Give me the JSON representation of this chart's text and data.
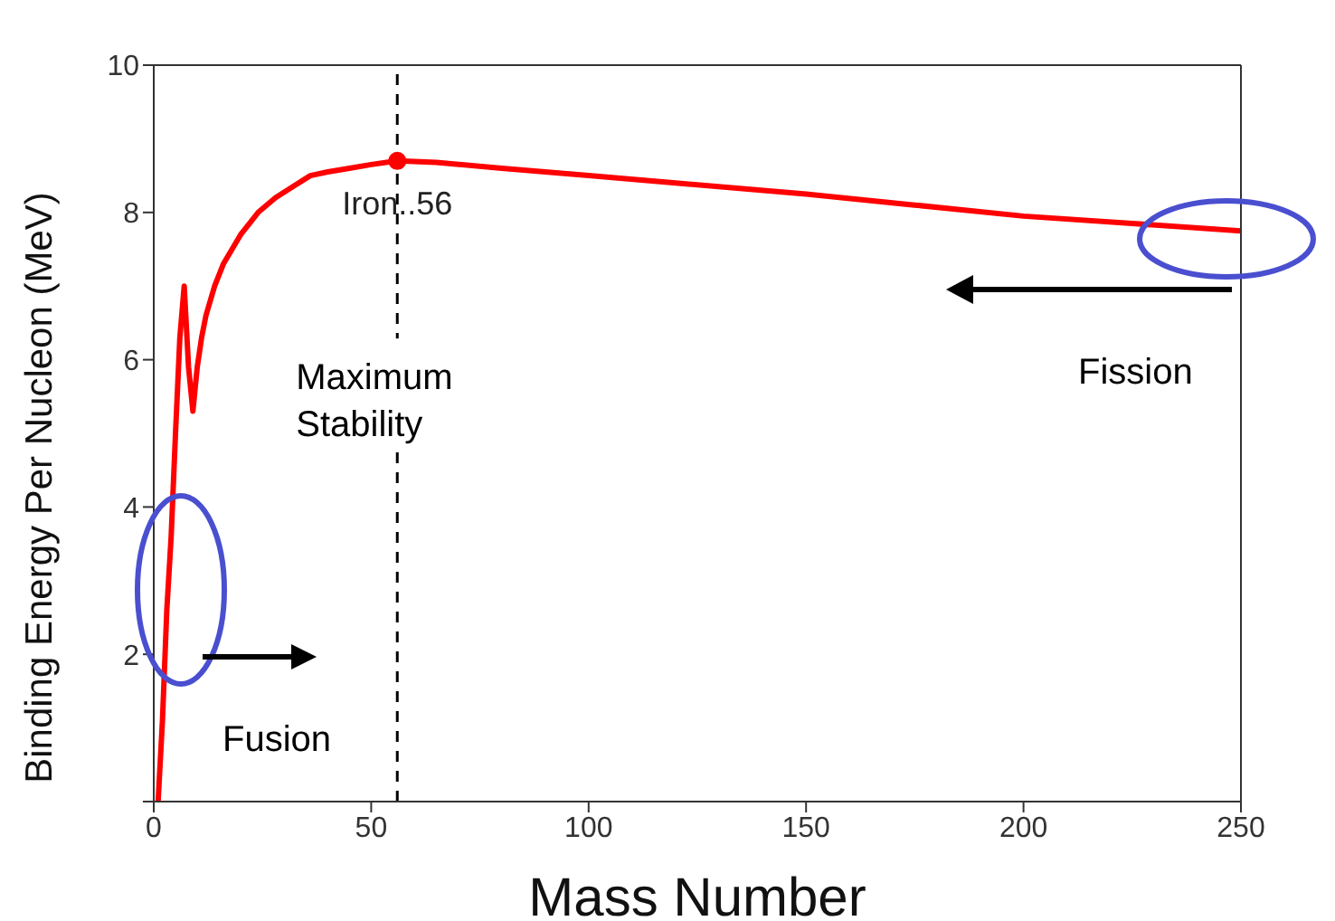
{
  "chart_data": {
    "type": "line",
    "xlabel": "Mass Number",
    "ylabel": "Binding Energy Per Nucleon (MeV)",
    "x": [
      1,
      2,
      3,
      4,
      5,
      6,
      7,
      8,
      9,
      10,
      11,
      12,
      14,
      16,
      18,
      20,
      24,
      28,
      32,
      36,
      40,
      45,
      50,
      56,
      65,
      80,
      100,
      120,
      150,
      175,
      200,
      225,
      250
    ],
    "series": [
      {
        "color": "#ff0000",
        "values": [
          0,
          1.1,
          2.6,
          3.6,
          5.0,
          6.3,
          7.0,
          5.9,
          5.3,
          5.9,
          6.3,
          6.6,
          7.0,
          7.3,
          7.5,
          7.7,
          8.0,
          8.2,
          8.35,
          8.5,
          8.55,
          8.6,
          8.65,
          8.7,
          8.68,
          8.6,
          8.5,
          8.4,
          8.25,
          8.1,
          7.95,
          7.85,
          7.75
        ]
      }
    ],
    "xlim": [
      0,
      250
    ],
    "xticks": [
      0,
      50,
      100,
      150,
      200,
      250
    ],
    "ylim": [
      0,
      10
    ],
    "yticks": [
      {
        "value": 0,
        "label": null
      },
      2,
      4,
      6,
      8,
      10
    ],
    "ref_lines": [
      {
        "axis": "x",
        "value": 56,
        "label": "Maximum Stability",
        "color": "#000000",
        "line_style": "dashed"
      }
    ],
    "annotations": [
      {
        "text": "Iron..56",
        "x": 56,
        "y": 8.7
      },
      "Fusion",
      "Fission"
    ],
    "grid": false,
    "marker": "none",
    "line_style": "solid"
  }
}
